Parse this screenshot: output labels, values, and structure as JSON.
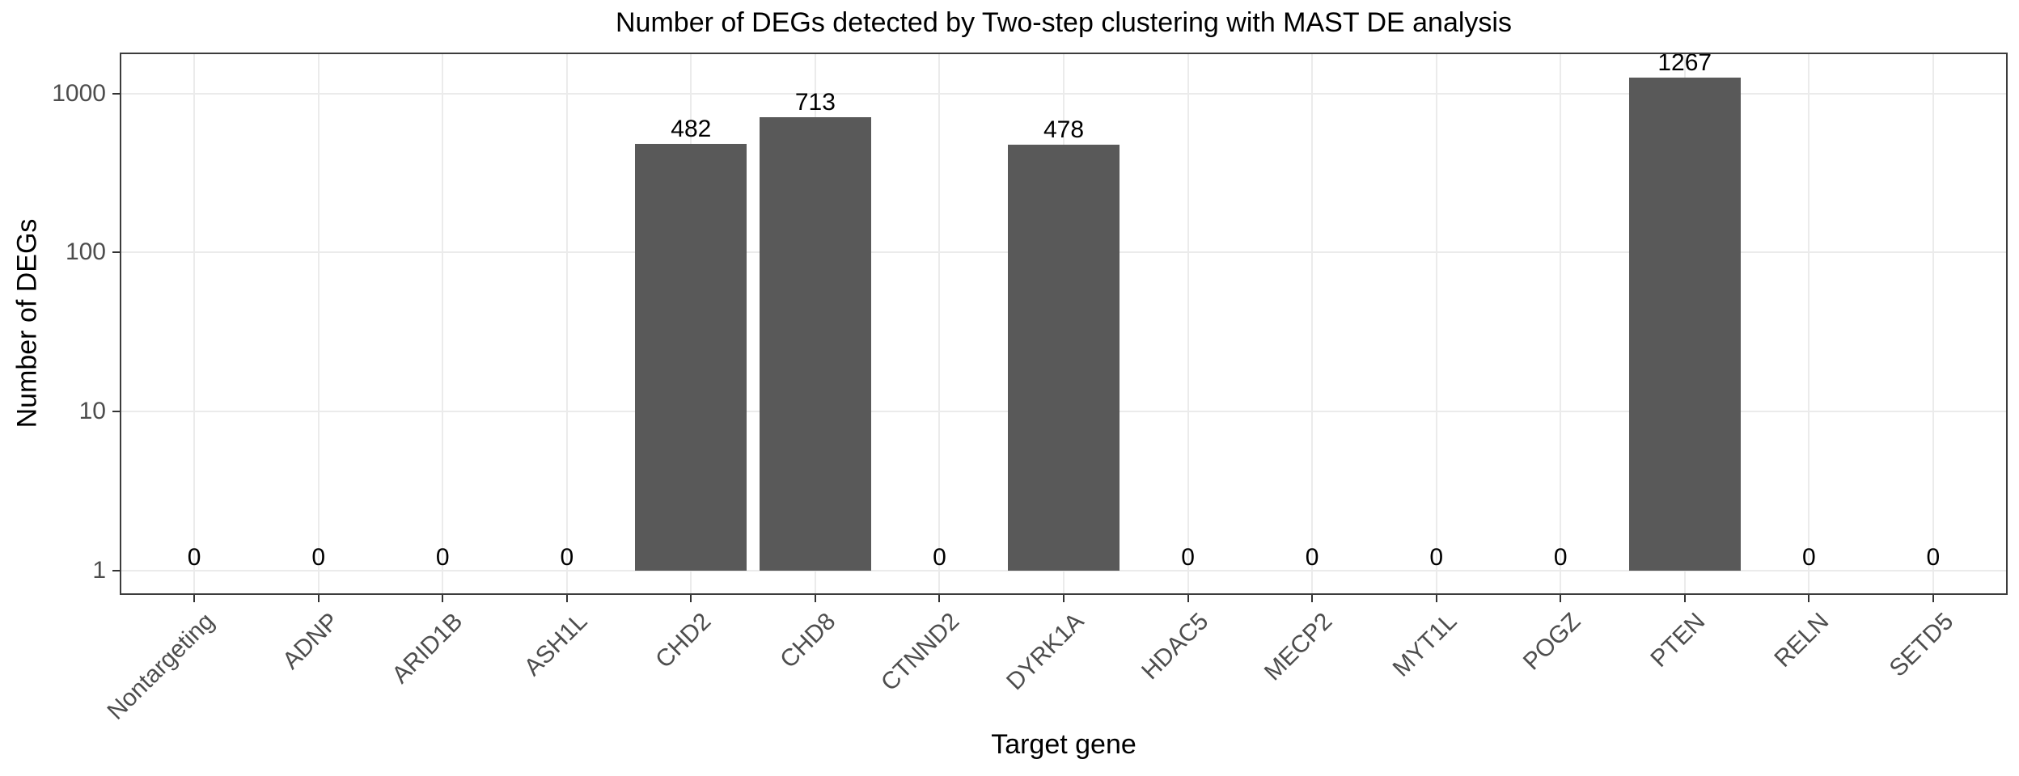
{
  "chart_data": {
    "type": "bar",
    "title": "Number of DEGs detected by Two-step clustering with MAST DE analysis",
    "xlabel": "Target gene",
    "ylabel": "Number of DEGs",
    "categories": [
      "Nontargeting",
      "ADNP",
      "ARID1B",
      "ASH1L",
      "CHD2",
      "CHD8",
      "CTNND2",
      "DYRK1A",
      "HDAC5",
      "MECP2",
      "MYT1L",
      "POGZ",
      "PTEN",
      "RELN",
      "SETD5"
    ],
    "values": [
      0,
      0,
      0,
      0,
      482,
      713,
      0,
      478,
      0,
      0,
      0,
      0,
      1267,
      0,
      0
    ],
    "yscale": "log10",
    "yticks": [
      1,
      10,
      100,
      1000
    ],
    "ylim": [
      0.7,
      1813
    ],
    "bar_base_value": 1,
    "grid": true,
    "legend": "none",
    "x_tick_angle": 45,
    "colors": {
      "bar_fill": "#595959",
      "grid_line": "#EBEBEB",
      "panel_border": "#3C3C3C",
      "tick_mark": "#333333",
      "axis_text": "#4D4D4D",
      "title_text": "#000000",
      "value_label": "#000000",
      "background": "#FFFFFF"
    }
  }
}
